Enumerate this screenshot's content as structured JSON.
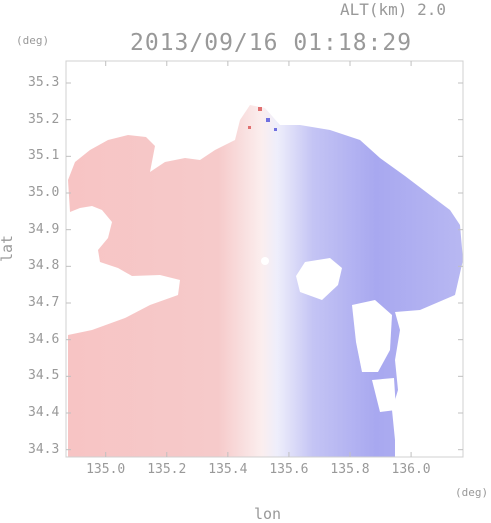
{
  "header": {
    "altitude_text": "ALT(km) 2.0",
    "timestamp": "2013/09/16 01:18:29"
  },
  "axes": {
    "y_unit": "(deg)",
    "x_unit": "(deg)",
    "y_label": "lat",
    "x_label": "lon",
    "y_ticks": [
      "35.3",
      "35.2",
      "35.1",
      "35.0",
      "34.9",
      "34.8",
      "34.7",
      "34.6",
      "34.5",
      "34.4",
      "34.3"
    ],
    "x_ticks": [
      "135.0",
      "135.2",
      "135.4",
      "135.6",
      "135.8",
      "136.0"
    ],
    "xlim": [
      134.87,
      136.17
    ],
    "ylim": [
      34.28,
      35.36
    ]
  },
  "colors": {
    "positive": "#f4b0b0",
    "negative": "#a8a8f0",
    "frame": "#d0d0d0",
    "text": "#999999"
  }
}
